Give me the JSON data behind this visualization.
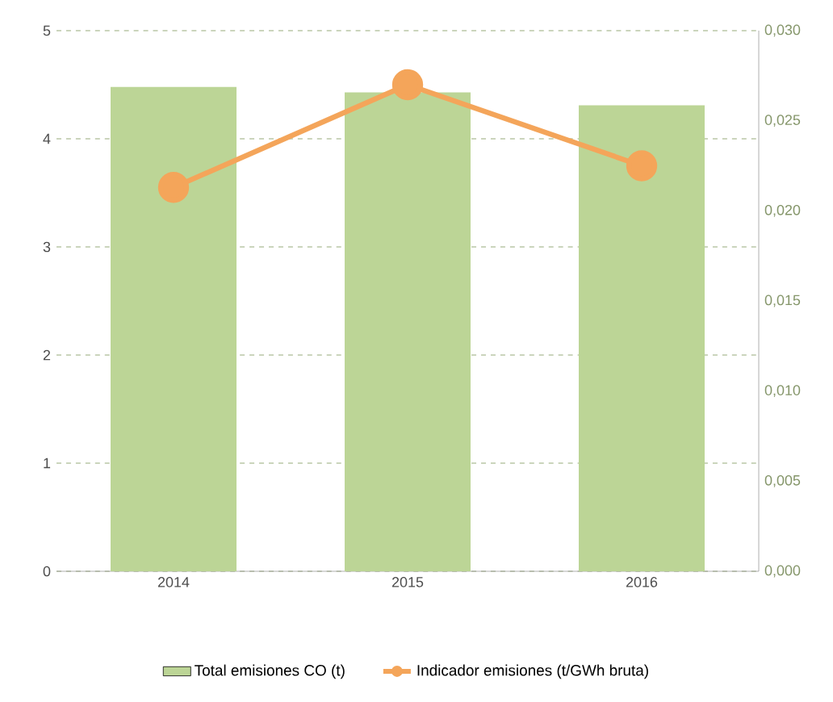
{
  "chart_data": {
    "type": "bar",
    "categories": [
      "2014",
      "2015",
      "2016"
    ],
    "series": [
      {
        "name": "Total emisiones CO (t)",
        "color": "#bcd596",
        "values": [
          4.48,
          4.43,
          4.31
        ]
      },
      {
        "name": "Indicador emisiones (t/GWh bruta)",
        "type": "line",
        "axis": "y2",
        "color": "#f4a55a",
        "marker": "circle",
        "values": [
          0.0213,
          0.027,
          0.0225
        ]
      }
    ],
    "ylim": [
      0,
      5
    ],
    "yticks": [
      0,
      1,
      2,
      3,
      4,
      5
    ],
    "y2lim": [
      0,
      0.03
    ],
    "y2ticks": [
      {
        "value": 0,
        "label": "0,000"
      },
      {
        "value": 0.005,
        "label": "0,005"
      },
      {
        "value": 0.01,
        "label": "0,010"
      },
      {
        "value": 0.015,
        "label": "0,015"
      },
      {
        "value": 0.02,
        "label": "0,020"
      },
      {
        "value": 0.025,
        "label": "0,025"
      },
      {
        "value": 0.03,
        "label": "0,030"
      }
    ],
    "grid": "y",
    "legend": "bottom"
  }
}
